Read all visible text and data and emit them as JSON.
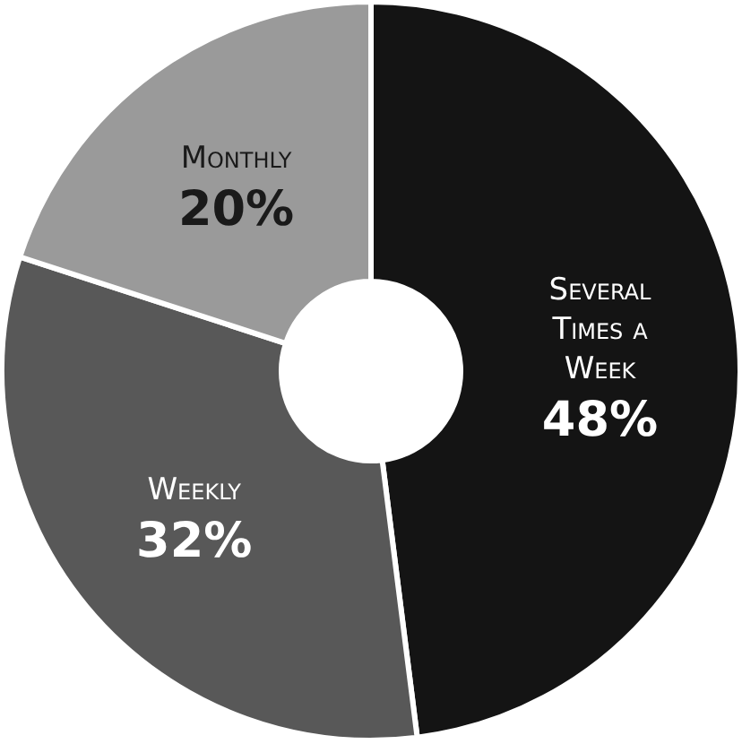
{
  "chart_data": {
    "type": "donut",
    "categories": [
      "Several Times a Week",
      "Weekly",
      "Monthly"
    ],
    "values": [
      48,
      32,
      20
    ],
    "colors": [
      "#141414",
      "#585858",
      "#9a9a9a"
    ],
    "value_labels": [
      "48%",
      "32%",
      "20%"
    ],
    "legend": false
  }
}
